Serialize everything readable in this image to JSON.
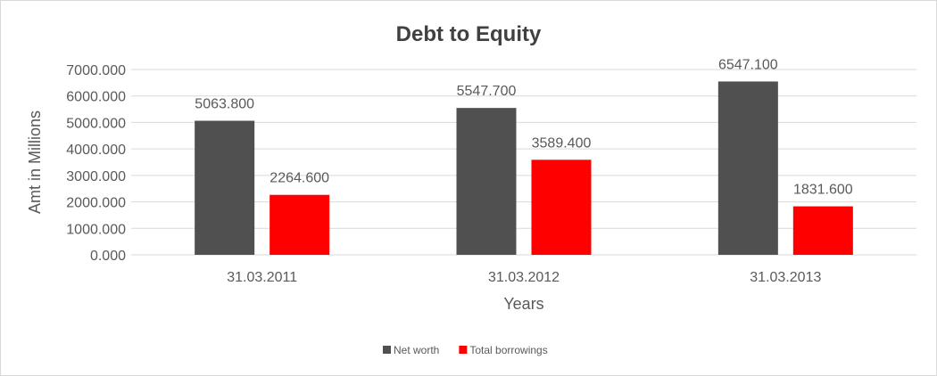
{
  "chart_data": {
    "type": "bar",
    "title": "Debt to Equity",
    "xlabel": "Years",
    "ylabel": "Amt in Millions",
    "categories": [
      "31.03.2011",
      "31.03.2012",
      "31.03.2013"
    ],
    "series": [
      {
        "name": "Net worth",
        "values": [
          5063.8,
          5547.7,
          6547.1
        ],
        "labels": [
          "5063.800",
          "5547.700",
          "6547.100"
        ],
        "color": "#505050"
      },
      {
        "name": "Total borrowings",
        "values": [
          2264.6,
          3589.4,
          1831.6
        ],
        "labels": [
          "2264.600",
          "3589.400",
          "1831.600"
        ],
        "color": "#ff0000"
      }
    ],
    "ylim": [
      0,
      7000
    ],
    "yticks": [
      "0.000",
      "1000.000",
      "2000.000",
      "3000.000",
      "4000.000",
      "5000.000",
      "6000.000",
      "7000.000"
    ],
    "grid": true,
    "legend": "bottom"
  }
}
